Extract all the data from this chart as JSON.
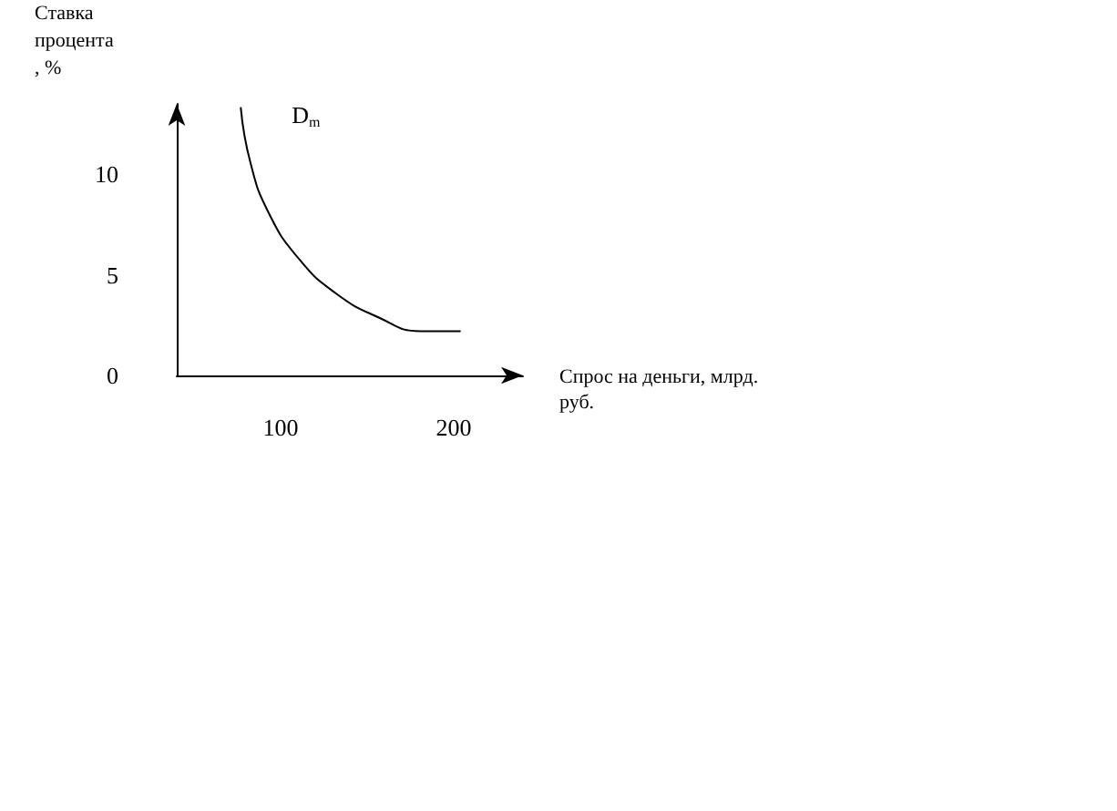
{
  "chart_data": {
    "type": "line",
    "ylabel": "Ставка\nпроцента\n, %",
    "xlabel": "Спрос на деньги, млрд.\nруб.",
    "xlim": [
      40,
      240
    ],
    "xticks": [
      100,
      200
    ],
    "ylim": [
      0,
      13.5
    ],
    "yticks": [
      0,
      5,
      10
    ],
    "series": [
      {
        "name": "D$_{m}$",
        "color": "#000000",
        "x": [
          77,
          82.5,
          93,
          110.5,
          131.6,
          156.2,
          180.7,
          203.6
        ],
        "values": [
          13.3,
          10.6,
          8.1,
          5.8,
          4.1,
          2.9,
          2.2,
          2.2
        ]
      }
    ],
    "grid": false,
    "legend": false,
    "marker": "none"
  }
}
